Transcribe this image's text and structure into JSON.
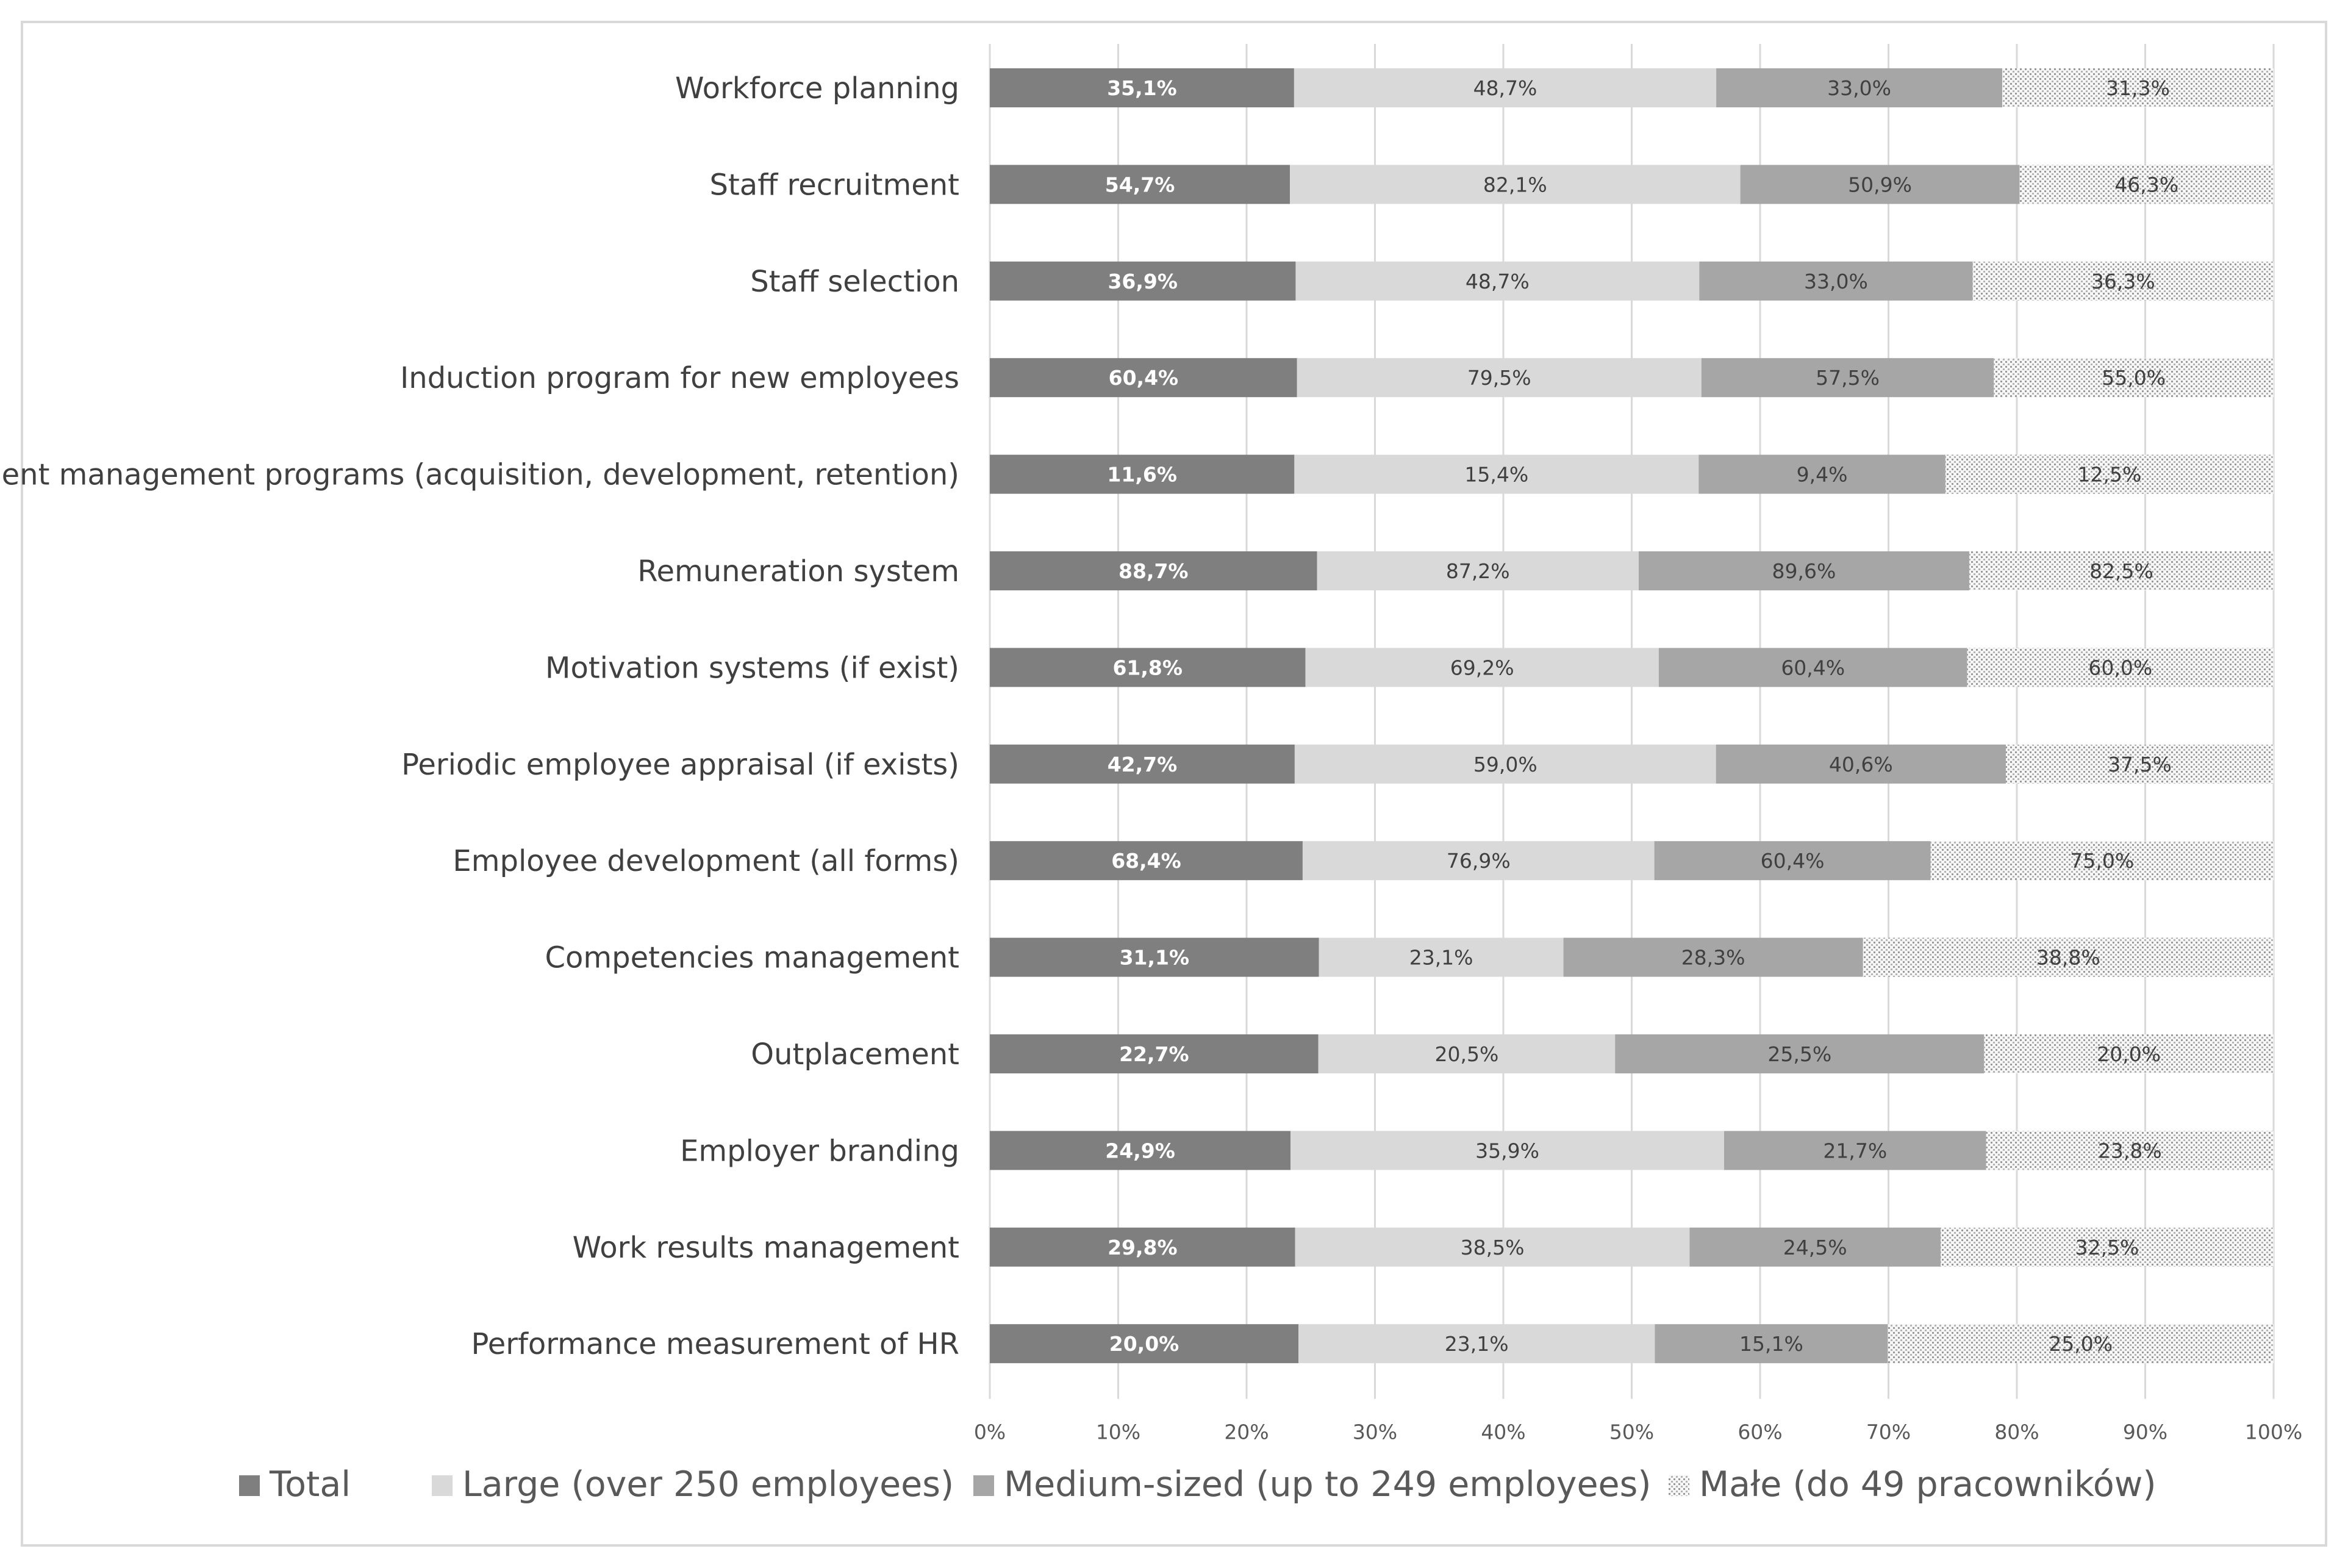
{
  "chart_data": {
    "type": "bar",
    "orientation": "horizontal",
    "stacked": true,
    "normalized": true,
    "categories": [
      "Workforce planning",
      "Staff recruitment",
      "Staff selection",
      "Induction program for new employees",
      "Talent management programs (acquisition, development, retention)",
      "Remuneration system",
      "Motivation systems (if exist)",
      "Periodic employee appraisal (if exists)",
      "Employee development (all forms)",
      "Competencies management",
      "Outplacement",
      "Employer branding",
      "Work results management",
      "Performance measurement of HR"
    ],
    "series": [
      {
        "name": "Total",
        "color": "#7f7f7f",
        "values": [
          35.1,
          54.7,
          36.9,
          60.4,
          11.6,
          88.7,
          61.8,
          42.7,
          68.4,
          31.1,
          22.7,
          24.9,
          29.8,
          20.0
        ],
        "labels": [
          "35,1%",
          "54,7%",
          "36,9%",
          "60,4%",
          "11,6%",
          "88,7%",
          "61,8%",
          "42,7%",
          "68,4%",
          "31,1%",
          "22,7%",
          "24,9%",
          "29,8%",
          "20,0%"
        ]
      },
      {
        "name": "Large (over 250 employees)",
        "color": "#d9d9d9",
        "values": [
          48.7,
          82.1,
          48.7,
          79.5,
          15.4,
          87.2,
          69.2,
          59.0,
          76.9,
          23.1,
          20.5,
          35.9,
          38.5,
          23.1
        ],
        "labels": [
          "48,7%",
          "82,1%",
          "48,7%",
          "79,5%",
          "15,4%",
          "87,2%",
          "69,2%",
          "59,0%",
          "76,9%",
          "23,1%",
          "20,5%",
          "35,9%",
          "38,5%",
          "23,1%"
        ]
      },
      {
        "name": "Medium-sized (up to 249 employees)",
        "color": "#a6a6a6",
        "values": [
          33.0,
          50.9,
          33.0,
          57.5,
          9.4,
          89.6,
          60.4,
          40.6,
          60.4,
          28.3,
          25.5,
          21.7,
          24.5,
          15.1
        ],
        "labels": [
          "33,0%",
          "50,9%",
          "33,0%",
          "57,5%",
          "9,4%",
          "89,6%",
          "60,4%",
          "40,6%",
          "60,4%",
          "28,3%",
          "25,5%",
          "21,7%",
          "24,5%",
          "15,1%"
        ]
      },
      {
        "name": "Małe (do 49 pracowników)",
        "color": "#f2f2f2",
        "pattern": "dots",
        "values": [
          31.3,
          46.3,
          36.3,
          55.0,
          12.5,
          82.5,
          60.0,
          37.5,
          75.0,
          38.8,
          20.0,
          23.8,
          32.5,
          25.0
        ],
        "labels": [
          "31,3%",
          "46,3%",
          "36,3%",
          "55,0%",
          "12,5%",
          "82,5%",
          "60,0%",
          "37,5%",
          "75,0%",
          "38,8%",
          "20,0%",
          "23,8%",
          "32,5%",
          "25,0%"
        ]
      }
    ],
    "x_ticks": [
      "0%",
      "10%",
      "20%",
      "30%",
      "40%",
      "50%",
      "60%",
      "70%",
      "80%",
      "90%",
      "100%"
    ],
    "xlim": [
      0,
      100
    ],
    "grid": true,
    "legend_position": "bottom",
    "label_colors": {
      "Total": "#ffffff",
      "other": "#404040"
    },
    "gridline_color": "#d9d9d9"
  }
}
